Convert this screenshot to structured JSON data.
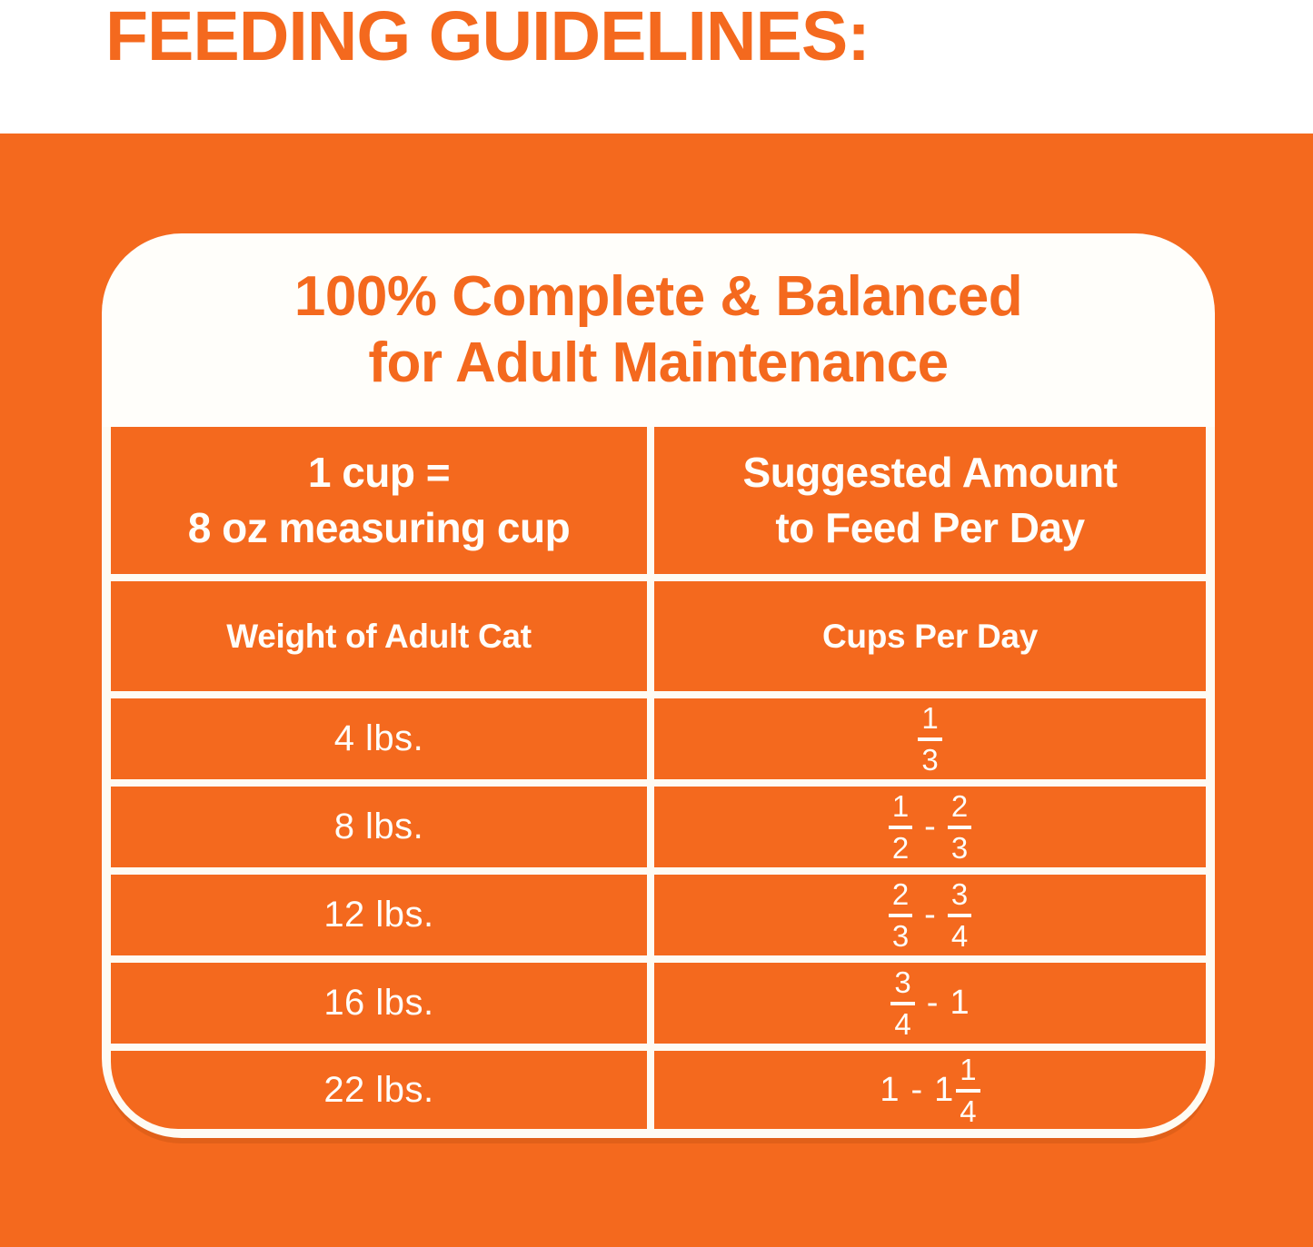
{
  "header": {
    "title": "FEEDING GUIDELINES:"
  },
  "panel": {
    "heading": {
      "line1": "100% Complete & Balanced",
      "line2": "for Adult Maintenance"
    }
  },
  "table": {
    "measure": {
      "line1": "1 cup =",
      "line2": "8 oz measuring cup"
    },
    "suggested": {
      "line1": "Suggested Amount",
      "line2": "to Feed Per Day"
    },
    "weight_header": "Weight of Adult Cat",
    "cups_header": "Cups Per Day",
    "rows": [
      {
        "weight": "4 lbs.",
        "cups": {
          "f1": {
            "num": "1",
            "den": "3"
          }
        }
      },
      {
        "weight": "8 lbs.",
        "cups": {
          "f1": {
            "num": "1",
            "den": "2"
          },
          "sep": "-",
          "f2": {
            "num": "2",
            "den": "3"
          }
        }
      },
      {
        "weight": "12 lbs.",
        "cups": {
          "f1": {
            "num": "2",
            "den": "3"
          },
          "sep": "-",
          "f2": {
            "num": "3",
            "den": "4"
          }
        }
      },
      {
        "weight": "16 lbs.",
        "cups": {
          "f1": {
            "num": "3",
            "den": "4"
          },
          "sep": "-",
          "whole": "1"
        }
      },
      {
        "weight": "22 lbs.",
        "cups": {
          "whole": "1",
          "sep": "-",
          "mixed": {
            "whole": "1",
            "frac": {
              "num": "1",
              "den": "4"
            }
          }
        }
      }
    ]
  },
  "colors": {
    "brand_orange": "#F4691E",
    "panel_white": "#FFFEFA"
  },
  "chart_data": {
    "type": "table",
    "title": "100% Complete & Balanced for Adult Maintenance",
    "note": "1 cup = 8 oz measuring cup",
    "columns": [
      "Weight of Adult Cat",
      "Cups Per Day"
    ],
    "rows": [
      [
        "4 lbs.",
        "1/3"
      ],
      [
        "8 lbs.",
        "1/2 - 2/3"
      ],
      [
        "12 lbs.",
        "2/3 - 3/4"
      ],
      [
        "16 lbs.",
        "3/4 - 1"
      ],
      [
        "22 lbs.",
        "1 - 1 1/4"
      ]
    ]
  }
}
